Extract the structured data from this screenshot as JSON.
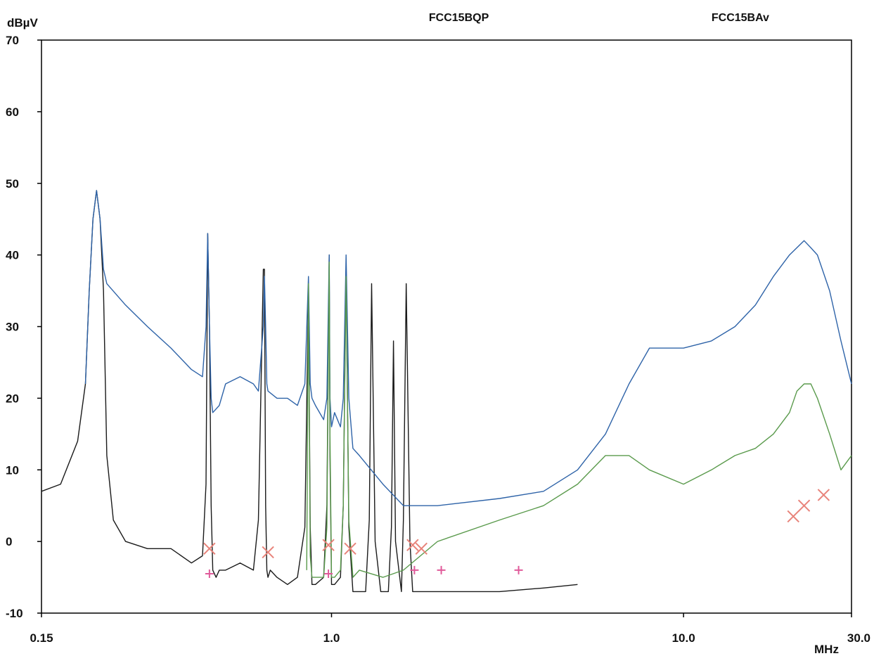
{
  "chart_data": {
    "type": "line",
    "title": "",
    "ylabel": "dBµV",
    "xlabel": "MHz",
    "x_scale": "log",
    "xlim": [
      0.15,
      30.0
    ],
    "ylim": [
      -10,
      70
    ],
    "y_ticks": [
      "70",
      "60",
      "50",
      "40",
      "30",
      "20",
      "10",
      "0",
      "-10"
    ],
    "x_ticks": [
      {
        "value": 0.15,
        "label": "0.15"
      },
      {
        "value": 1.0,
        "label": "1.0"
      },
      {
        "value": 10.0,
        "label": "10.0"
      },
      {
        "value": 30.0,
        "label": "30.0"
      }
    ],
    "limit_labels": [
      {
        "text": "FCC15BQP",
        "x": 2.3
      },
      {
        "text": "FCC15BAv",
        "x": 14.5
      }
    ],
    "grid": false,
    "series": [
      {
        "name": "",
        "color": "#1a1a1a",
        "x": [
          0.15,
          0.17,
          0.19,
          0.2,
          0.205,
          0.21,
          0.215,
          0.22,
          0.225,
          0.23,
          0.24,
          0.26,
          0.3,
          0.35,
          0.4,
          0.43,
          0.44,
          0.445,
          0.45,
          0.455,
          0.46,
          0.47,
          0.48,
          0.5,
          0.55,
          0.6,
          0.62,
          0.64,
          0.645,
          0.65,
          0.655,
          0.66,
          0.67,
          0.7,
          0.75,
          0.8,
          0.84,
          0.86,
          0.87,
          0.88,
          0.9,
          0.95,
          0.97,
          0.985,
          0.99,
          1.0,
          1.02,
          1.06,
          1.08,
          1.1,
          1.12,
          1.15,
          1.2,
          1.25,
          1.28,
          1.3,
          1.33,
          1.38,
          1.45,
          1.48,
          1.5,
          1.52,
          1.58,
          1.6,
          1.63,
          1.67,
          1.7,
          1.8,
          2.2,
          3.0,
          4.0,
          5.0
        ],
        "y": [
          7,
          8,
          14,
          22,
          35,
          45,
          49,
          45,
          35,
          12,
          3,
          0,
          -1,
          -1,
          -3,
          -2,
          8,
          43,
          30,
          5,
          -4,
          -5,
          -4,
          -4,
          -3,
          -4,
          3,
          38,
          38,
          5,
          -4,
          -5,
          -4,
          -5,
          -6,
          -5,
          2,
          35,
          2,
          -6,
          -6,
          -5,
          5,
          40,
          12,
          -6,
          -6,
          -5,
          5,
          38,
          2,
          -7,
          -7,
          -7,
          3,
          36,
          0,
          -7,
          -7,
          2,
          28,
          0,
          -7,
          3,
          36,
          0,
          -7,
          -7,
          -7,
          -7,
          -6.5,
          -6
        ]
      },
      {
        "name": "",
        "color": "#2e63a8",
        "x": [
          0.2,
          0.205,
          0.21,
          0.215,
          0.22,
          0.225,
          0.23,
          0.26,
          0.3,
          0.35,
          0.4,
          0.43,
          0.44,
          0.445,
          0.45,
          0.455,
          0.46,
          0.48,
          0.5,
          0.55,
          0.6,
          0.62,
          0.64,
          0.645,
          0.65,
          0.655,
          0.66,
          0.7,
          0.75,
          0.8,
          0.84,
          0.86,
          0.87,
          0.88,
          0.9,
          0.95,
          0.97,
          0.985,
          0.99,
          1.0,
          1.02,
          1.06,
          1.08,
          1.1,
          1.12,
          1.15,
          1.2,
          1.4,
          1.6,
          2.0,
          3.0,
          4.0,
          5.0,
          6.0,
          7.0,
          8.0,
          10.0,
          12.0,
          14.0,
          16.0,
          18.0,
          20.0,
          22.0,
          23.0,
          24.0,
          26.0,
          28.0,
          30.0
        ],
        "y": [
          22,
          35,
          45,
          49,
          45,
          38,
          36,
          33,
          30,
          27,
          24,
          23,
          30,
          43,
          30,
          20,
          18,
          19,
          22,
          23,
          22,
          21,
          30,
          37,
          30,
          22,
          21,
          20,
          20,
          19,
          22,
          37,
          22,
          20,
          19,
          17,
          20,
          40,
          20,
          16,
          18,
          16,
          20,
          40,
          20,
          13,
          12,
          8,
          5,
          5,
          6,
          7,
          10,
          15,
          22,
          27,
          27,
          28,
          30,
          33,
          37,
          40,
          42,
          41,
          40,
          35,
          28,
          22
        ]
      },
      {
        "name": "",
        "color": "#5a9a4c",
        "x": [
          0.85,
          0.86,
          0.87,
          0.88,
          0.9,
          0.95,
          0.97,
          0.985,
          0.99,
          1.0,
          1.02,
          1.06,
          1.08,
          1.1,
          1.12,
          1.15,
          1.2,
          1.4,
          1.6,
          2.0,
          3.0,
          4.0,
          5.0,
          6.0,
          7.0,
          8.0,
          10.0,
          12.0,
          14.0,
          16.0,
          18.0,
          20.0,
          21.0,
          22.0,
          23.0,
          24.0,
          26.0,
          28.0,
          30.0
        ],
        "y": [
          -4,
          36,
          -2,
          -5,
          -5,
          -5,
          2,
          39,
          15,
          -5,
          -5,
          -4,
          5,
          37,
          3,
          -5,
          -4,
          -5,
          -4,
          0,
          3,
          5,
          8,
          12,
          12,
          10,
          8,
          10,
          12,
          13,
          15,
          18,
          21,
          22,
          22,
          20,
          15,
          10,
          12
        ]
      }
    ],
    "markers": {
      "qp": {
        "symbol": "x",
        "color": "#e8837a",
        "points": [
          [
            0.45,
            -1
          ],
          [
            0.66,
            -1.5
          ],
          [
            0.98,
            -0.5
          ],
          [
            1.13,
            -1
          ],
          [
            1.7,
            -0.5
          ],
          [
            1.8,
            -1
          ],
          [
            20.5,
            3.5
          ],
          [
            22.0,
            5
          ],
          [
            25.0,
            6.5
          ]
        ]
      },
      "av": {
        "symbol": "+",
        "color": "#e05a9a",
        "points": [
          [
            0.45,
            -4.5
          ],
          [
            0.98,
            -4.5
          ],
          [
            1.72,
            -4
          ],
          [
            2.05,
            -4
          ],
          [
            3.4,
            -4
          ]
        ]
      }
    }
  }
}
